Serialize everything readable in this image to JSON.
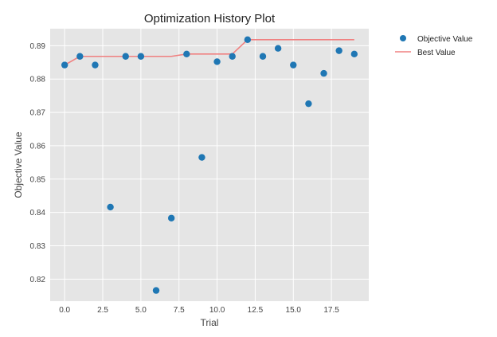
{
  "chart_data": {
    "type": "scatter",
    "title": "Optimization History Plot",
    "xlabel": "Trial",
    "ylabel": "Objective Value",
    "xlim": [
      -0.95,
      19.95
    ],
    "ylim": [
      0.8134,
      0.8951
    ],
    "xticks": [
      "0.0",
      "2.5",
      "5.0",
      "7.5",
      "10.0",
      "12.5",
      "15.0",
      "17.5"
    ],
    "xtick_values": [
      0,
      2.5,
      5,
      7.5,
      10,
      12.5,
      15,
      17.5
    ],
    "yticks": [
      "0.82",
      "0.83",
      "0.84",
      "0.85",
      "0.86",
      "0.87",
      "0.88",
      "0.89"
    ],
    "ytick_values": [
      0.82,
      0.83,
      0.84,
      0.85,
      0.86,
      0.87,
      0.88,
      0.89
    ],
    "grid": true,
    "legend_position": "right, outside plot",
    "series": [
      {
        "name": "Objective Value",
        "kind": "scatter",
        "color": "#1f77b4",
        "x": [
          0,
          1,
          2,
          3,
          4,
          5,
          6,
          7,
          8,
          9,
          10,
          11,
          12,
          13,
          14,
          15,
          16,
          17,
          18,
          19
        ],
        "y": [
          0.8842,
          0.8868,
          0.8842,
          0.8416,
          0.8868,
          0.8868,
          0.8166,
          0.8383,
          0.8875,
          0.8565,
          0.8852,
          0.8868,
          0.8918,
          0.8868,
          0.8892,
          0.8842,
          0.8726,
          0.8817,
          0.8885,
          0.8875
        ]
      },
      {
        "name": "Best Value",
        "kind": "line",
        "color": "#f08080",
        "x": [
          0,
          1,
          2,
          3,
          4,
          5,
          6,
          7,
          8,
          9,
          10,
          11,
          12,
          13,
          14,
          15,
          16,
          17,
          18,
          19
        ],
        "y": [
          0.8842,
          0.8868,
          0.8868,
          0.8868,
          0.8868,
          0.8868,
          0.8868,
          0.8868,
          0.8875,
          0.8875,
          0.8875,
          0.8875,
          0.8918,
          0.8918,
          0.8918,
          0.8918,
          0.8918,
          0.8918,
          0.8918,
          0.8918
        ]
      }
    ]
  },
  "colors": {
    "plot_background": "#e5e5e5",
    "grid": "#ffffff",
    "scatter": "#1f77b4",
    "best_line": "#f08080"
  }
}
